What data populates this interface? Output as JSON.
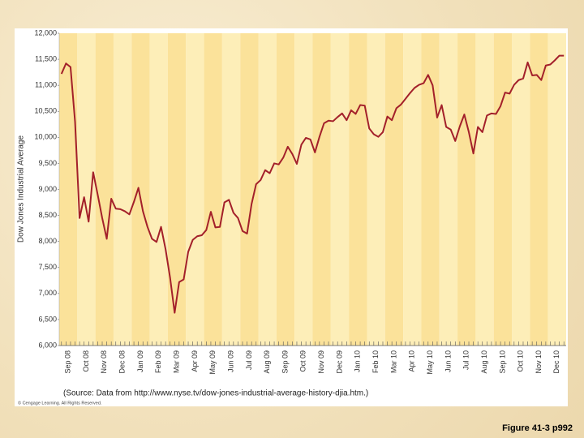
{
  "chart_data": {
    "type": "line",
    "y_label": "Dow Jones Industrial Average",
    "source": "(Source: Data from http://www.nyse.tv/dow-jones-industrial-average-history-djia.htm.)",
    "copyright": "© Cengage Learning. All Rights Reserved.",
    "caption": "Figure 41-3 p992",
    "categories": [
      "Sep 08",
      null,
      null,
      null,
      "Oct 08",
      null,
      null,
      null,
      "Nov 08",
      null,
      null,
      null,
      "Dec 08",
      null,
      null,
      null,
      "Jan 09",
      null,
      null,
      null,
      "Feb 09",
      null,
      null,
      null,
      "Mar 09",
      null,
      null,
      null,
      "Apr 09",
      null,
      null,
      null,
      "May 09",
      null,
      null,
      null,
      "Jun 09",
      null,
      null,
      null,
      "Jul 09",
      null,
      null,
      null,
      "Aug 09",
      null,
      null,
      null,
      "Sep 09",
      null,
      null,
      null,
      "Oct 09",
      null,
      null,
      null,
      "Nov 09",
      null,
      null,
      null,
      "Dec 09",
      null,
      null,
      null,
      "Jan 10",
      null,
      null,
      null,
      "Feb 10",
      null,
      null,
      null,
      "Mar 10",
      null,
      null,
      null,
      "Apr 10",
      null,
      null,
      null,
      "May 10",
      null,
      null,
      null,
      "Jun 10",
      null,
      null,
      null,
      "Jul 10",
      null,
      null,
      null,
      "Aug 10",
      null,
      null,
      null,
      "Sep 10",
      null,
      null,
      null,
      "Oct 10",
      null,
      null,
      null,
      "Nov 10",
      null,
      null,
      null,
      "Dec 10",
      null,
      null,
      null
    ],
    "series": [
      {
        "name": "Dow Jones Industrial Average",
        "color": "#a3202a",
        "values": [
          11220,
          11420,
          11350,
          10300,
          8450,
          8850,
          8380,
          9330,
          8900,
          8450,
          8050,
          8820,
          8630,
          8620,
          8580,
          8520,
          8760,
          9030,
          8580,
          8280,
          8050,
          7990,
          8280,
          7850,
          7300,
          6630,
          7220,
          7270,
          7800,
          8030,
          8100,
          8120,
          8220,
          8570,
          8270,
          8280,
          8750,
          8800,
          8550,
          8450,
          8200,
          8150,
          8720,
          9100,
          9180,
          9370,
          9310,
          9500,
          9480,
          9610,
          9820,
          9680,
          9490,
          9860,
          9990,
          9960,
          9710,
          10010,
          10270,
          10320,
          10310,
          10390,
          10460,
          10330,
          10520,
          10450,
          10620,
          10610,
          10170,
          10060,
          10010,
          10100,
          10400,
          10330,
          10560,
          10630,
          10740,
          10850,
          10950,
          11010,
          11040,
          11200,
          11000,
          10380,
          10620,
          10200,
          10150,
          9930,
          10210,
          10440,
          10100,
          9690,
          10200,
          10100,
          10420,
          10460,
          10450,
          10600,
          10860,
          10840,
          11010,
          11100,
          11130,
          11440,
          11190,
          11200,
          11100,
          11380,
          11400,
          11480,
          11570,
          11570
        ]
      }
    ],
    "ylim": [
      6000,
      12000
    ],
    "yticks": [
      {
        "value": 6000,
        "label": "6,000"
      },
      {
        "value": 6500,
        "label": "6,500"
      },
      {
        "value": 7000,
        "label": "7,000"
      },
      {
        "value": 7500,
        "label": "7,500"
      },
      {
        "value": 8000,
        "label": "8,000"
      },
      {
        "value": 8500,
        "label": "8,500"
      },
      {
        "value": 9000,
        "label": "9,000"
      },
      {
        "value": 9500,
        "label": "9,500"
      },
      {
        "value": 10000,
        "label": "10,000"
      },
      {
        "value": 10500,
        "label": "10,500"
      },
      {
        "value": 11000,
        "label": "11,000"
      },
      {
        "value": 11500,
        "label": "11,500"
      },
      {
        "value": 12000,
        "label": "12,000"
      }
    ]
  }
}
